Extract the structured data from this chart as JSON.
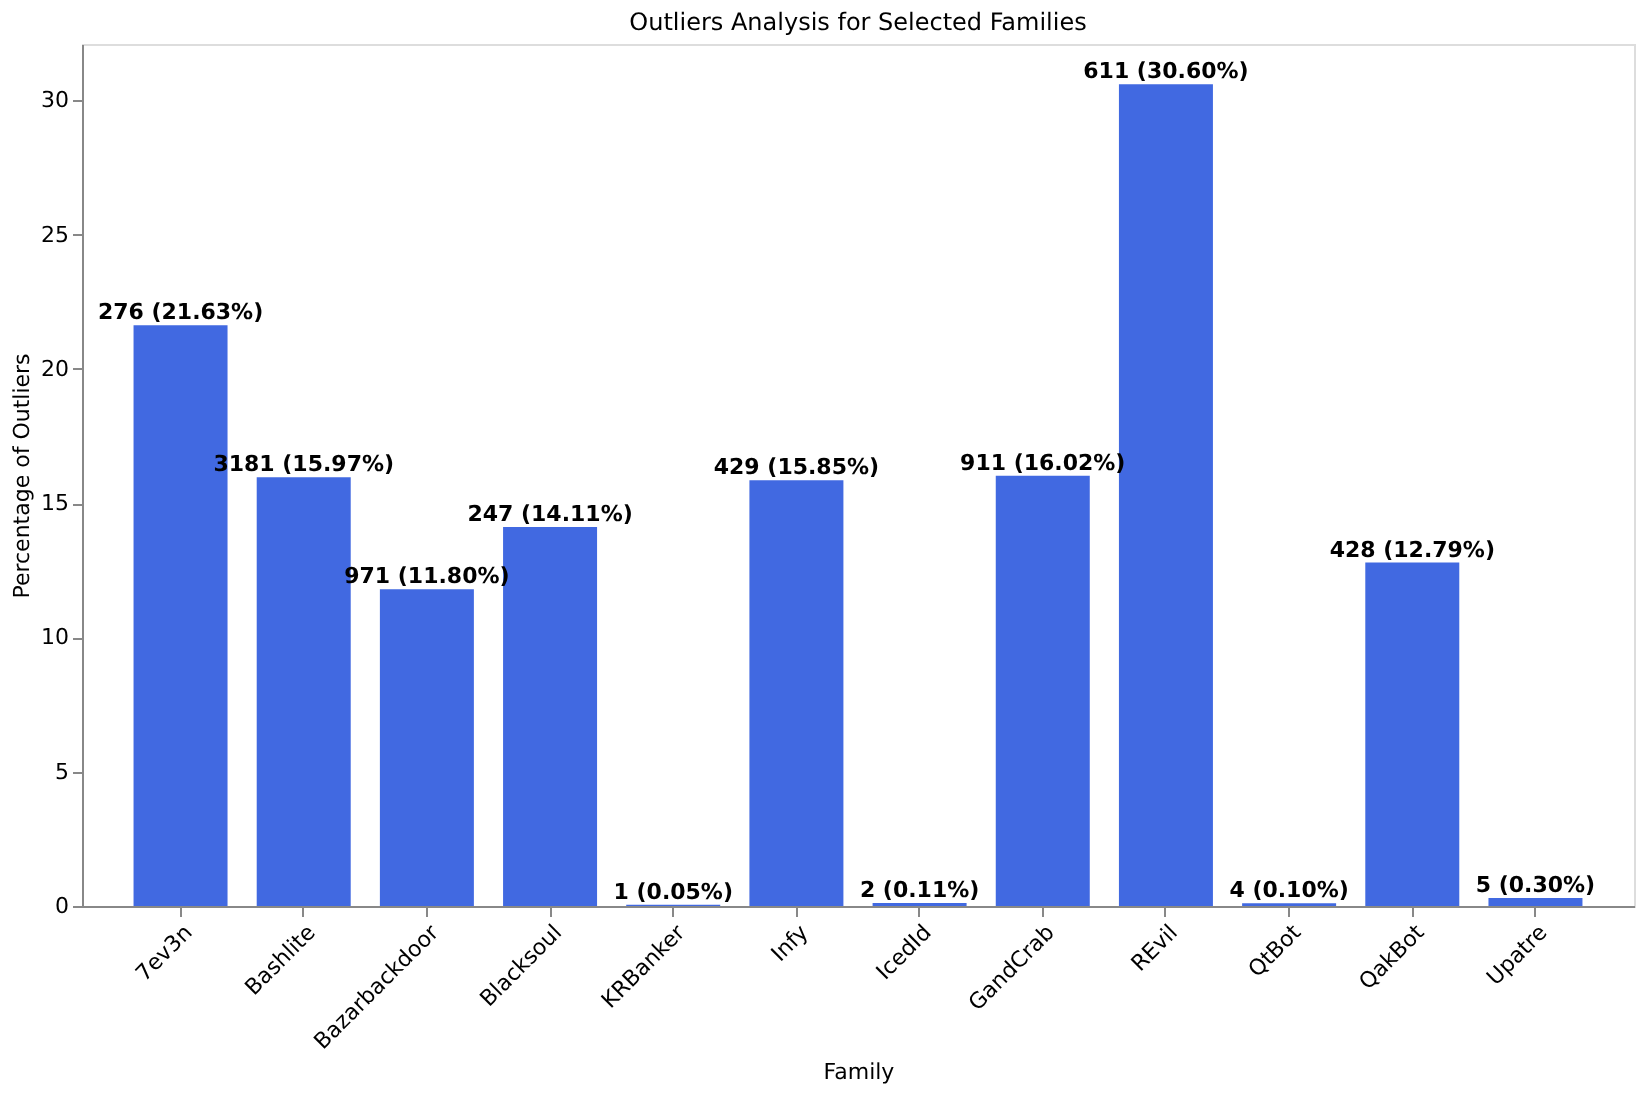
{
  "chart_data": {
    "type": "bar",
    "title": "Outliers Analysis for Selected Families",
    "xlabel": "Family",
    "ylabel": "Percentage of Outliers",
    "categories": [
      "7ev3n",
      "Bashlite",
      "Bazarbackdoor",
      "Blacksoul",
      "KRBanker",
      "Infy",
      "IcedId",
      "GandCrab",
      "REvil",
      "QtBot",
      "QakBot",
      "Upatre"
    ],
    "values": [
      21.63,
      15.97,
      11.8,
      14.11,
      0.05,
      15.85,
      0.11,
      16.02,
      30.6,
      0.1,
      12.79,
      0.3
    ],
    "value_labels": [
      "276 (21.63%)",
      "3181 (15.97%)",
      "971 (11.80%)",
      "247 (14.11%)",
      "1 (0.05%)",
      "429 (15.85%)",
      "2 (0.11%)",
      "911 (16.02%)",
      "611 (30.60%)",
      "4 (0.10%)",
      "428 (12.79%)",
      "5 (0.30%)"
    ],
    "color": "#4169e1",
    "ylim": [
      0,
      32.1
    ],
    "yticks": [
      0,
      5,
      10,
      15,
      20,
      25,
      30
    ],
    "grid": false
  }
}
